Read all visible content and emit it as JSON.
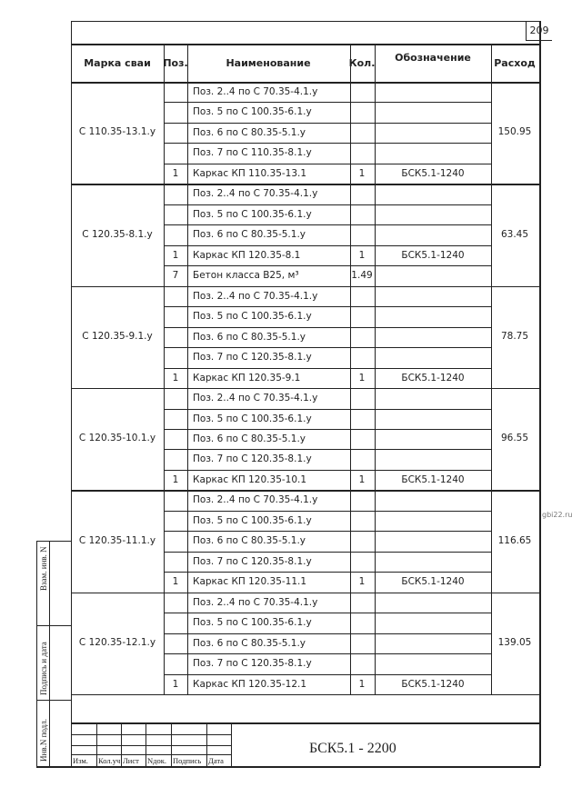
{
  "page_number": "209",
  "watermark": "gbi22.ru",
  "headers": [
    "Марка сваи",
    "Поз.",
    "Наименование",
    "Кол.",
    "Обозначение",
    "Расход"
  ],
  "groups": [
    {
      "mark": "С 110.35-13.1.у",
      "consumption": "150.95",
      "rows": [
        {
          "pos": "",
          "name": "Поз. 2..4 по С 70.35-4.1.у",
          "qty": "",
          "designation": ""
        },
        {
          "pos": "",
          "name": "Поз. 5 по С 100.35-6.1.у",
          "qty": "",
          "designation": ""
        },
        {
          "pos": "",
          "name": "Поз. 6 по С 80.35-5.1.у",
          "qty": "",
          "designation": ""
        },
        {
          "pos": "",
          "name": "Поз. 7 по С 110.35-8.1.у",
          "qty": "",
          "designation": ""
        },
        {
          "pos": "1",
          "name": "Каркас КП 110.35-13.1",
          "qty": "1",
          "designation": "БСК5.1-1240"
        }
      ]
    },
    {
      "mark": "С 120.35-8.1.у",
      "consumption": "63.45",
      "rows": [
        {
          "pos": "",
          "name": "Поз. 2..4 по С 70.35-4.1.у",
          "qty": "",
          "designation": ""
        },
        {
          "pos": "",
          "name": "Поз. 5 по С 100.35-6.1.у",
          "qty": "",
          "designation": ""
        },
        {
          "pos": "",
          "name": "Поз. 6 по С 80.35-5.1.у",
          "qty": "",
          "designation": ""
        },
        {
          "pos": "1",
          "name": "Каркас КП 120.35-8.1",
          "qty": "1",
          "designation": "БСК5.1-1240"
        },
        {
          "pos": "7",
          "name": "Бетон класса В25, м³",
          "qty": "1.49",
          "designation": ""
        }
      ]
    },
    {
      "mark": "С 120.35-9.1.у",
      "consumption": "78.75",
      "rows": [
        {
          "pos": "",
          "name": "Поз. 2..4 по С 70.35-4.1.у",
          "qty": "",
          "designation": ""
        },
        {
          "pos": "",
          "name": "Поз. 5 по С 100.35-6.1.у",
          "qty": "",
          "designation": ""
        },
        {
          "pos": "",
          "name": "Поз. 6 по С 80.35-5.1.у",
          "qty": "",
          "designation": ""
        },
        {
          "pos": "",
          "name": "Поз. 7 по С 120.35-8.1.у",
          "qty": "",
          "designation": ""
        },
        {
          "pos": "1",
          "name": "Каркас КП 120.35-9.1",
          "qty": "1",
          "designation": "БСК5.1-1240"
        }
      ]
    },
    {
      "mark": "С 120.35-10.1.у",
      "consumption": "96.55",
      "rows": [
        {
          "pos": "",
          "name": "Поз. 2..4 по С 70.35-4.1.у",
          "qty": "",
          "designation": ""
        },
        {
          "pos": "",
          "name": "Поз. 5 по С 100.35-6.1.у",
          "qty": "",
          "designation": ""
        },
        {
          "pos": "",
          "name": "Поз. 6 по С 80.35-5.1.у",
          "qty": "",
          "designation": ""
        },
        {
          "pos": "",
          "name": "Поз. 7 по С 120.35-8.1.у",
          "qty": "",
          "designation": ""
        },
        {
          "pos": "1",
          "name": "Каркас КП 120.35-10.1",
          "qty": "1",
          "designation": "БСК5.1-1240"
        }
      ]
    },
    {
      "mark": "С 120.35-11.1.у",
      "consumption": "116.65",
      "rows": [
        {
          "pos": "",
          "name": "Поз. 2..4 по С 70.35-4.1.у",
          "qty": "",
          "designation": ""
        },
        {
          "pos": "",
          "name": "Поз. 5 по С 100.35-6.1.у",
          "qty": "",
          "designation": ""
        },
        {
          "pos": "",
          "name": "Поз. 6 по С 80.35-5.1.у",
          "qty": "",
          "designation": ""
        },
        {
          "pos": "",
          "name": "Поз. 7 по С 120.35-8.1.у",
          "qty": "",
          "designation": ""
        },
        {
          "pos": "1",
          "name": "Каркас КП 120.35-11.1",
          "qty": "1",
          "designation": "БСК5.1-1240"
        }
      ]
    },
    {
      "mark": "С 120.35-12.1.у",
      "consumption": "139.05",
      "rows": [
        {
          "pos": "",
          "name": "Поз. 2..4 по С 70.35-4.1.у",
          "qty": "",
          "designation": ""
        },
        {
          "pos": "",
          "name": "Поз. 5 по С 100.35-6.1.у",
          "qty": "",
          "designation": ""
        },
        {
          "pos": "",
          "name": "Поз. 6 по С 80.35-5.1.у",
          "qty": "",
          "designation": ""
        },
        {
          "pos": "",
          "name": "Поз. 7 по С 120.35-8.1.у",
          "qty": "",
          "designation": ""
        },
        {
          "pos": "1",
          "name": "Каркас КП 120.35-12.1",
          "qty": "1",
          "designation": "БСК5.1-1240"
        }
      ]
    }
  ],
  "side_stamps": [
    "Взам. инв. N",
    "Подпись и дата",
    "Инв.N подл."
  ],
  "title_block": {
    "columns": [
      "Изм.",
      "Кол.уч",
      "Лист",
      "Nдок.",
      "Подпись",
      "Дата"
    ],
    "document_code": "БСК5.1 - 2200"
  }
}
